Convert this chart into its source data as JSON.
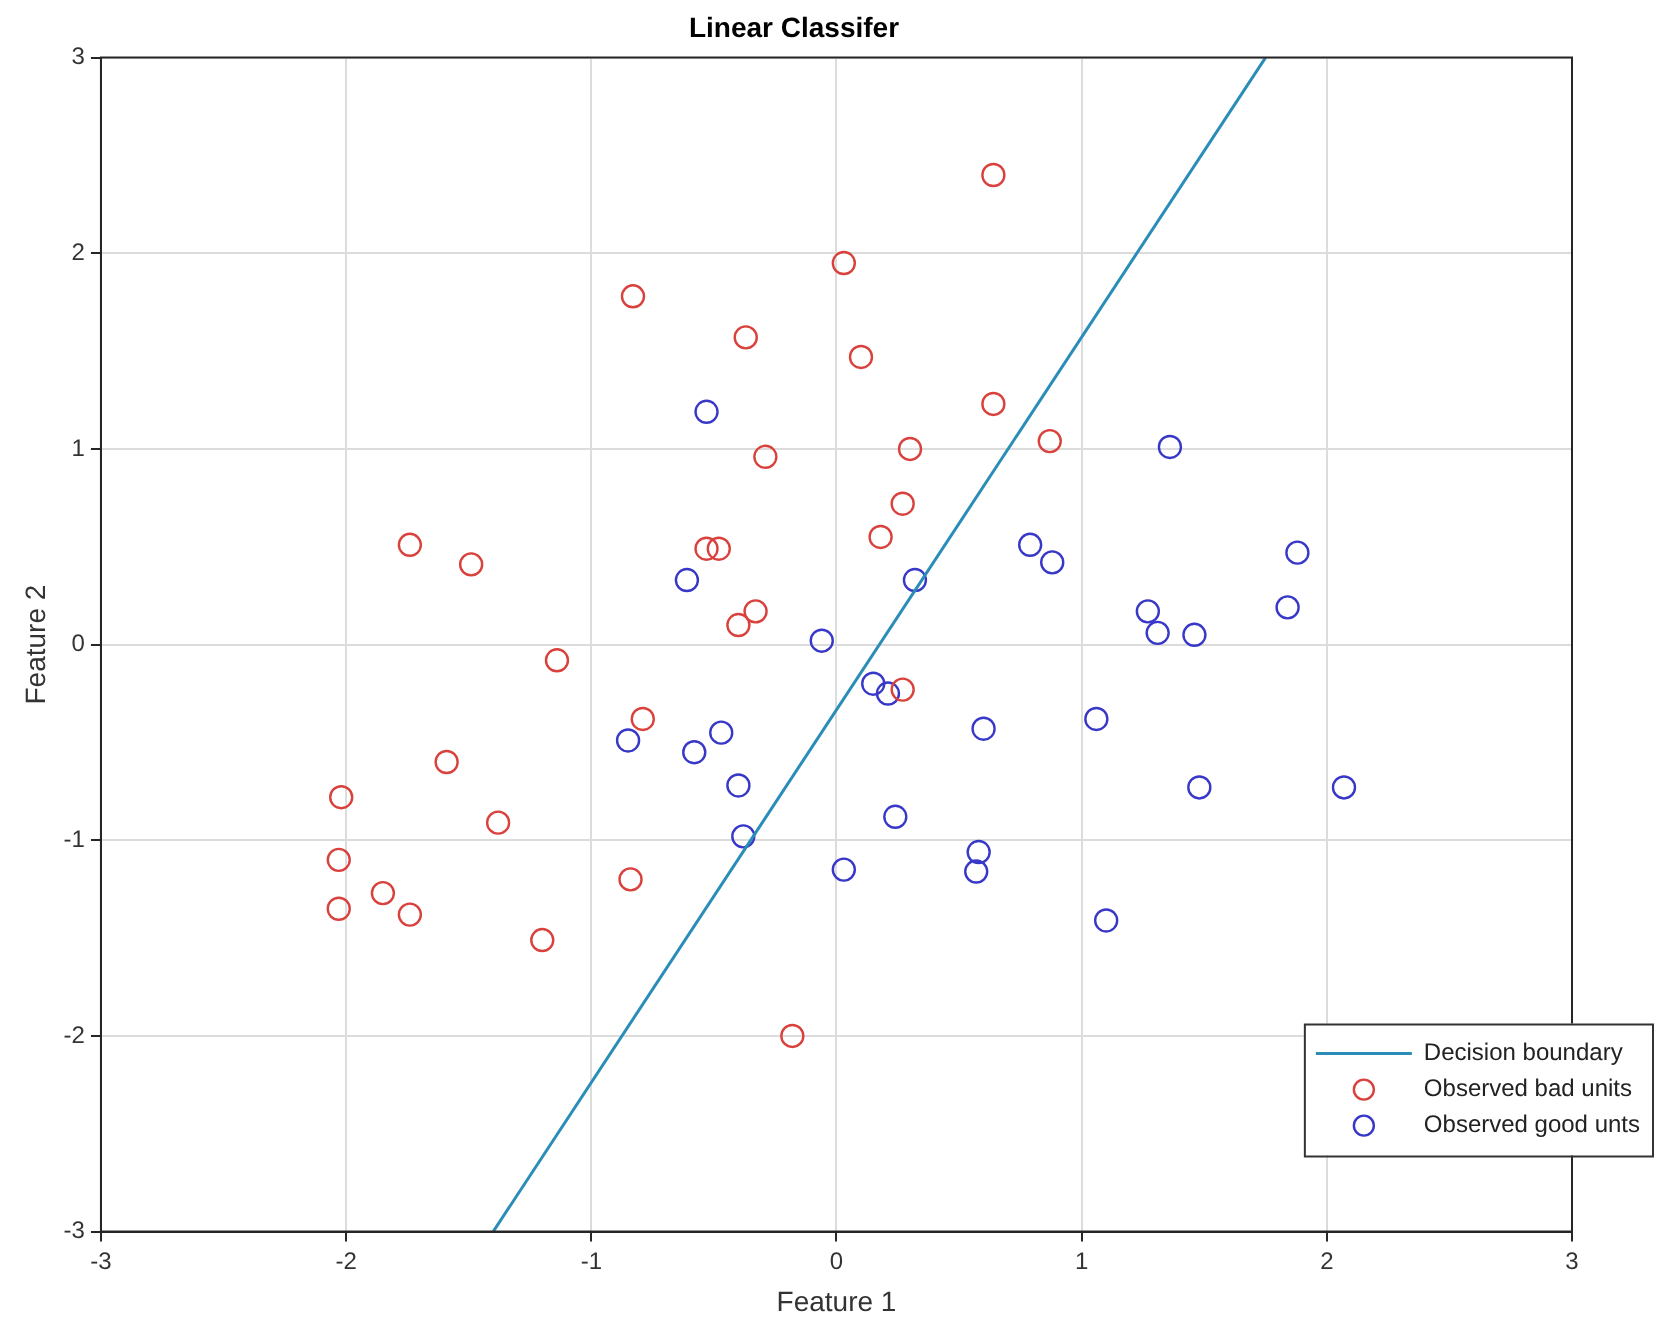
{
  "chart_data": {
    "type": "scatter",
    "title": "Linear Classifer",
    "xlabel": "Feature 1",
    "ylabel": "Feature 2",
    "xlim": [
      -3,
      3
    ],
    "ylim": [
      -3,
      3
    ],
    "xticks": [
      -3,
      -2,
      -1,
      0,
      1,
      2,
      3
    ],
    "yticks": [
      -3,
      -2,
      -1,
      0,
      1,
      2,
      3
    ],
    "grid": true,
    "legend": "bottom right",
    "series": [
      {
        "name": "Decision boundary",
        "type": "line",
        "marker": "none",
        "color": "#2a8db8",
        "x": [
          -1.4,
          1.75
        ],
        "values": [
          -3,
          3
        ]
      },
      {
        "name": "Observed bad units",
        "marker": "circle",
        "color": "#d9413c",
        "x": [
          0.64,
          0.03,
          -0.83,
          -0.37,
          0.1,
          0.64,
          0.87,
          0.3,
          -0.29,
          0.27,
          0.18,
          -1.74,
          -1.49,
          -0.53,
          -0.48,
          -0.33,
          -0.4,
          -1.14,
          -0.79,
          0.27,
          -2.02,
          -2.03,
          -2.03,
          -1.85,
          -1.74,
          -1.59,
          -1.38,
          -1.2,
          -0.84,
          -0.18
        ],
        "values": [
          2.4,
          1.95,
          1.78,
          1.57,
          1.47,
          1.23,
          1.04,
          1.0,
          0.96,
          0.72,
          0.55,
          0.51,
          0.41,
          0.49,
          0.49,
          0.17,
          0.1,
          -0.08,
          -0.38,
          -0.23,
          -0.78,
          -1.1,
          -1.35,
          -1.27,
          -1.38,
          -0.6,
          -0.91,
          -1.51,
          -1.2,
          -2.0
        ]
      },
      {
        "name": "Observed good unts",
        "marker": "circle",
        "color": "#3838c8",
        "x": [
          -0.53,
          -0.61,
          1.36,
          0.32,
          0.79,
          0.88,
          1.88,
          1.27,
          1.31,
          1.46,
          1.84,
          -0.06,
          0.15,
          0.21,
          0.6,
          1.06,
          1.48,
          2.07,
          0.24,
          0.58,
          0.57,
          0.03,
          1.1,
          -0.85,
          -0.58,
          -0.47,
          -0.4,
          -0.38
        ],
        "values": [
          1.19,
          0.33,
          1.01,
          0.33,
          0.51,
          0.42,
          0.47,
          0.17,
          0.06,
          0.05,
          0.19,
          0.02,
          -0.2,
          -0.25,
          -0.43,
          -0.38,
          -0.73,
          -0.73,
          -0.88,
          -1.06,
          -1.16,
          -1.15,
          -1.41,
          -0.49,
          -0.55,
          -0.45,
          -0.72,
          -0.98
        ]
      }
    ]
  }
}
